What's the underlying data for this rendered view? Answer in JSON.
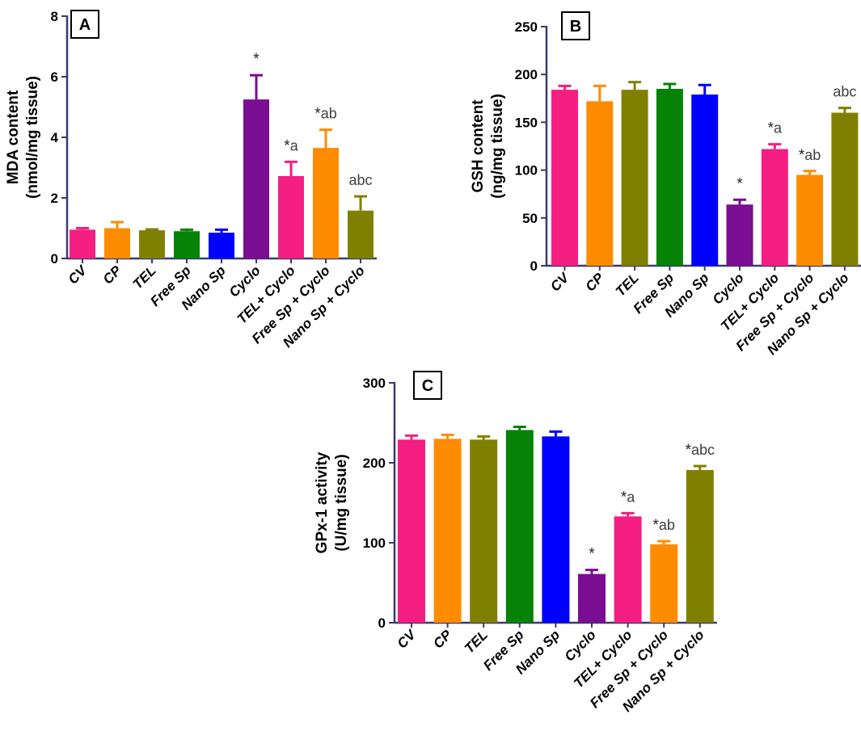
{
  "colors": {
    "axis": "#3a3a6e",
    "text": "#000000",
    "annotation": "#404040"
  },
  "chart_data": [
    {
      "panel": "A",
      "type": "bar",
      "ylabel_line1": "MDA content",
      "ylabel_line2": "(nmol/mg tissue)",
      "ylim": [
        0,
        8
      ],
      "yticks": [
        0,
        2,
        4,
        6,
        8
      ],
      "categories": [
        "CV",
        "CP",
        "TEL",
        "Free Sp",
        "Nano Sp",
        "Cyclo",
        "TEL+ Cyclo",
        "Free Sp + Cyclo",
        "Nano Sp + Cyclo"
      ],
      "values": [
        0.95,
        1.0,
        0.93,
        0.9,
        0.85,
        5.25,
        2.72,
        3.65,
        1.58
      ],
      "errors": [
        0.05,
        0.2,
        0.03,
        0.05,
        0.1,
        0.8,
        0.47,
        0.6,
        0.47
      ],
      "colors": [
        "#f51e82",
        "#ff8c00",
        "#808000",
        "#068206",
        "#0000ff",
        "#7a0d91",
        "#f51e82",
        "#ff8c00",
        "#808000"
      ],
      "annotations": [
        {
          "index": 5,
          "star": "*",
          "letters": ""
        },
        {
          "index": 6,
          "star": "*",
          "letters": "a"
        },
        {
          "index": 7,
          "star": "*",
          "letters": "ab"
        },
        {
          "index": 8,
          "star": "",
          "letters": "abc"
        }
      ]
    },
    {
      "panel": "B",
      "type": "bar",
      "ylabel_line1": "GSH content",
      "ylabel_line2": "(ng/mg tissue)",
      "ylim": [
        0,
        250
      ],
      "yticks": [
        0,
        50,
        100,
        150,
        200,
        250
      ],
      "categories": [
        "CV",
        "CP",
        "TEL",
        "Free Sp",
        "Nano Sp",
        "Cyclo",
        "TEL+ Cyclo",
        "Free Sp + Cyclo",
        "Nano Sp + Cyclo"
      ],
      "values": [
        184,
        172,
        184,
        185,
        179,
        64,
        122,
        95,
        160
      ],
      "errors": [
        4,
        16,
        8,
        5,
        10,
        5,
        5,
        4,
        5
      ],
      "colors": [
        "#f51e82",
        "#ff8c00",
        "#808000",
        "#068206",
        "#0000ff",
        "#7a0d91",
        "#f51e82",
        "#ff8c00",
        "#808000"
      ],
      "annotations": [
        {
          "index": 5,
          "star": "*",
          "letters": ""
        },
        {
          "index": 6,
          "star": "*",
          "letters": "a"
        },
        {
          "index": 7,
          "star": "*",
          "letters": "ab"
        },
        {
          "index": 8,
          "star": "",
          "letters": "abc"
        }
      ]
    },
    {
      "panel": "C",
      "type": "bar",
      "ylabel_line1": "GPx-1 activity",
      "ylabel_line2": "(U/mg tissue)",
      "ylim": [
        0,
        300
      ],
      "yticks": [
        0,
        100,
        200,
        300
      ],
      "categories": [
        "CV",
        "CP",
        "TEL",
        "Free Sp",
        "Nano Sp",
        "Cyclo",
        "TEL+ Cyclo",
        "Free Sp + Cyclo",
        "Nano Sp + Cyclo"
      ],
      "values": [
        229,
        230,
        229,
        241,
        233,
        61,
        133,
        98,
        191
      ],
      "errors": [
        5,
        5,
        4,
        4,
        6,
        5,
        4,
        4,
        5
      ],
      "colors": [
        "#f51e82",
        "#ff8c00",
        "#808000",
        "#068206",
        "#0000ff",
        "#7a0d91",
        "#f51e82",
        "#ff8c00",
        "#808000"
      ],
      "annotations": [
        {
          "index": 5,
          "star": "*",
          "letters": ""
        },
        {
          "index": 6,
          "star": "*",
          "letters": "a"
        },
        {
          "index": 7,
          "star": "*",
          "letters": "ab"
        },
        {
          "index": 8,
          "star": "*",
          "letters": "abc"
        }
      ]
    }
  ]
}
